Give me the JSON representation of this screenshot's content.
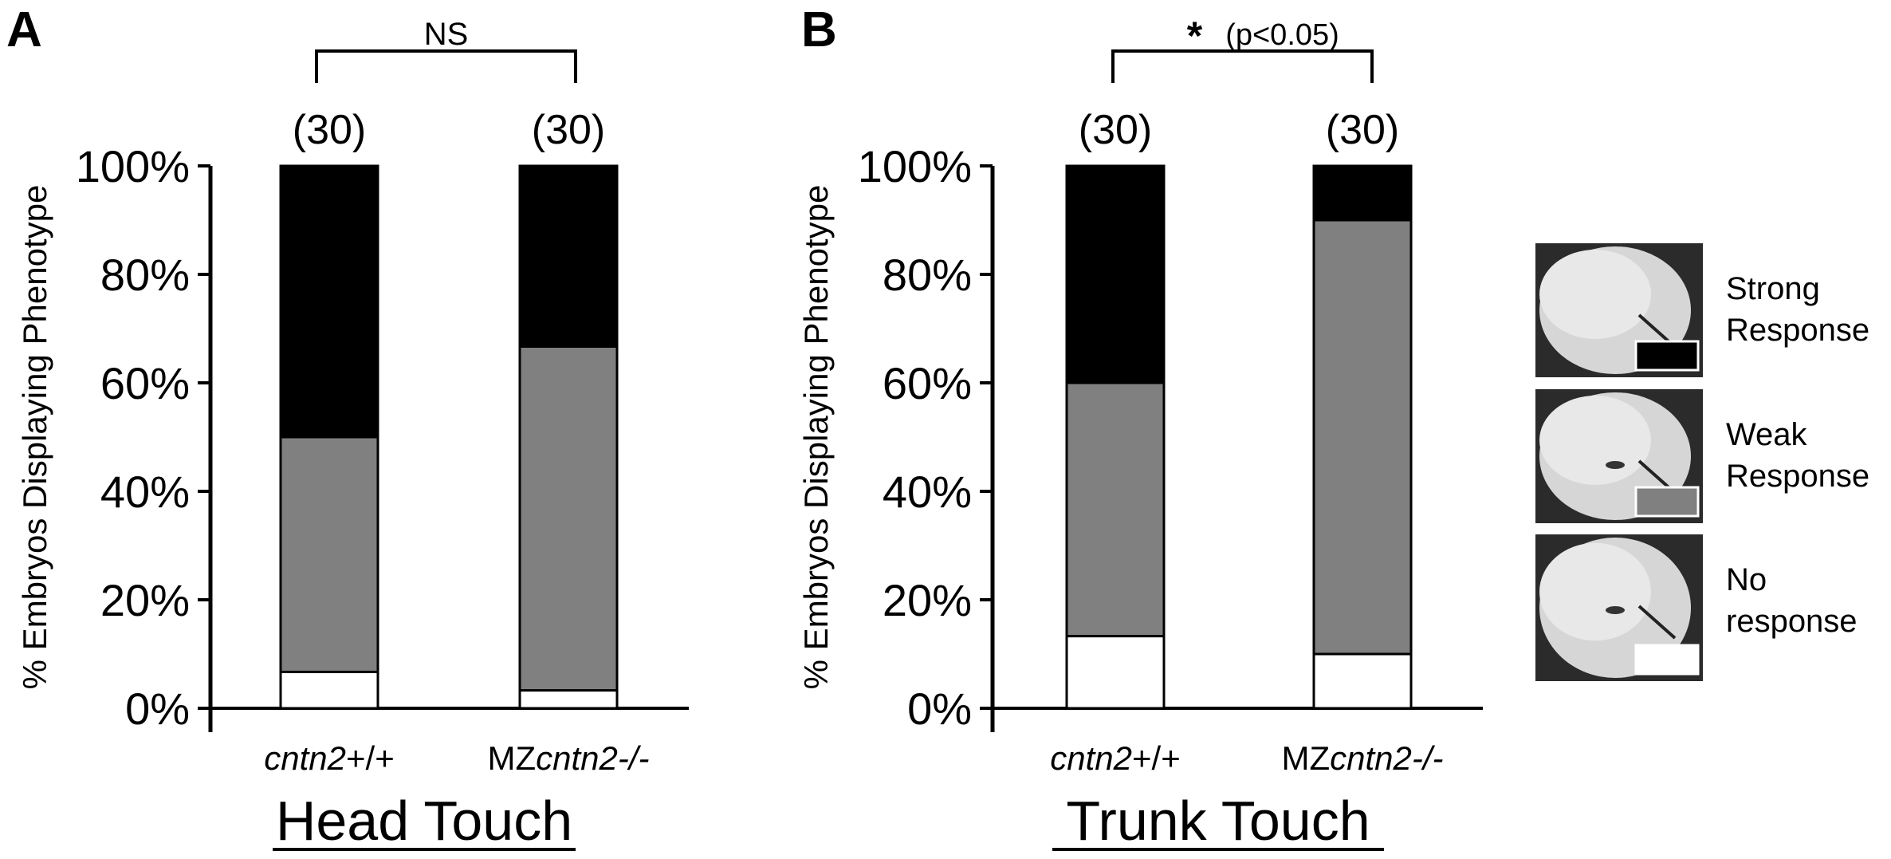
{
  "colors": {
    "strong": "#000000",
    "weak": "#808080",
    "none": "#ffffff",
    "axis": "#000000"
  },
  "chart_data": [
    {
      "type": "bar",
      "stacked": true,
      "panel_label": "A",
      "title": "Head Touch",
      "ylabel": "% Embryos Displaying Phenotype",
      "ylim": [
        0,
        100
      ],
      "yticks": [
        "0%",
        "20%",
        "40%",
        "60%",
        "80%",
        "100%"
      ],
      "categories": [
        {
          "gene": "cntn2",
          "suffix": "+/+",
          "prefix": ""
        },
        {
          "gene": "cntn2-/-",
          "suffix": "",
          "prefix": "MZ"
        }
      ],
      "n_labels": [
        "(30)",
        "(30)"
      ],
      "significance": {
        "symbol": "",
        "text": "NS"
      },
      "series": [
        {
          "name": "No response",
          "values": [
            6.7,
            3.3
          ]
        },
        {
          "name": "Weak Response",
          "values": [
            43.3,
            63.4
          ]
        },
        {
          "name": "Strong Response",
          "values": [
            50.0,
            33.3
          ]
        }
      ]
    },
    {
      "type": "bar",
      "stacked": true,
      "panel_label": "B",
      "title": "Trunk Touch",
      "ylabel": "% Embryos Displaying Phenotype",
      "ylim": [
        0,
        100
      ],
      "yticks": [
        "0%",
        "20%",
        "40%",
        "60%",
        "80%",
        "100%"
      ],
      "categories": [
        {
          "gene": "cntn2",
          "suffix": "+/+",
          "prefix": ""
        },
        {
          "gene": "cntn2-/-",
          "suffix": "",
          "prefix": "MZ"
        }
      ],
      "n_labels": [
        "(30)",
        "(30)"
      ],
      "significance": {
        "symbol": "*",
        "text": "(p<0.05)"
      },
      "series": [
        {
          "name": "No response",
          "values": [
            13.3,
            10.0
          ]
        },
        {
          "name": "Weak Response",
          "values": [
            46.7,
            80.0
          ]
        },
        {
          "name": "Strong Response",
          "values": [
            40.0,
            10.0
          ]
        }
      ]
    }
  ],
  "legend": [
    {
      "line1": "Strong",
      "line2": "Response",
      "swatch": "#000000"
    },
    {
      "line1": "Weak",
      "line2": "Response",
      "swatch": "#808080"
    },
    {
      "line1": "No",
      "line2": "response",
      "swatch": "#ffffff"
    }
  ]
}
